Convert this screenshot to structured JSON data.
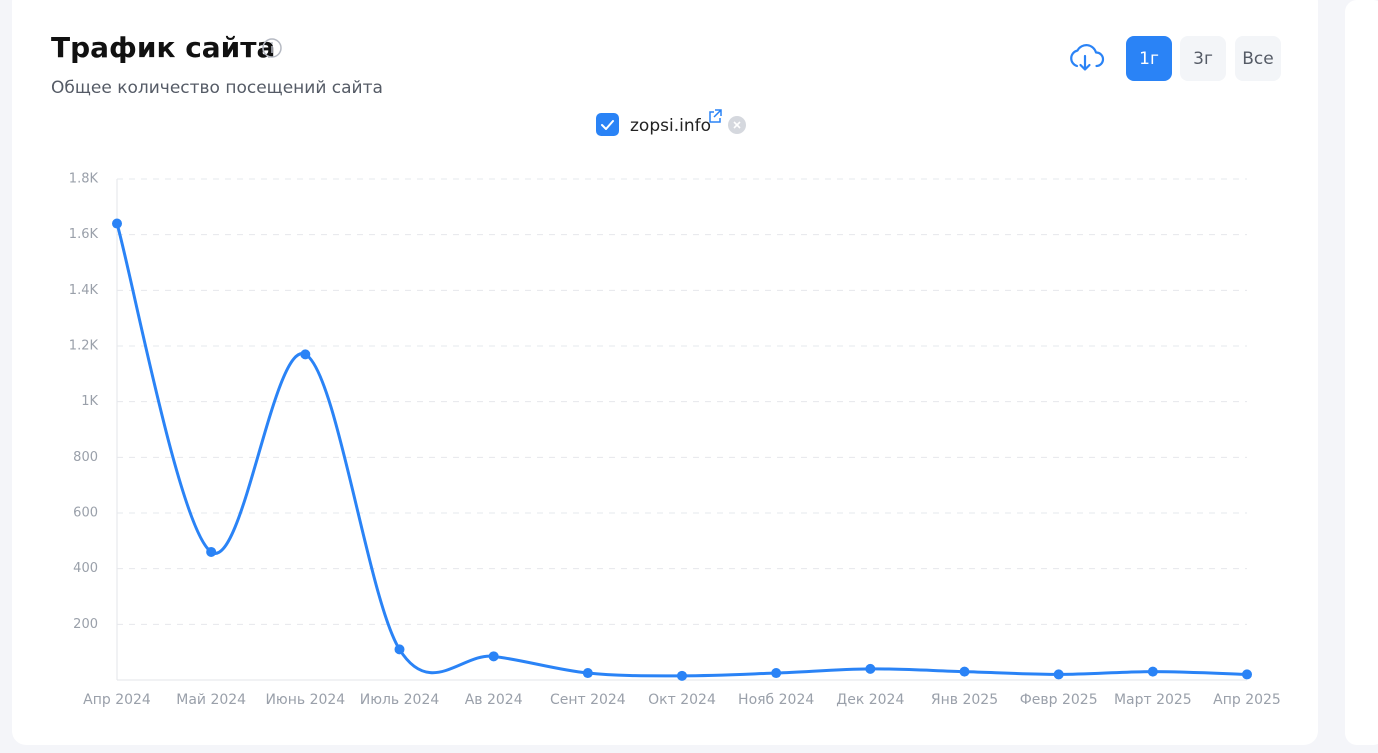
{
  "header": {
    "title": "Трафик сайта",
    "subtitle": "Общее количество посещений сайта"
  },
  "controls": {
    "periods": [
      "1г",
      "3г",
      "Все"
    ]
  },
  "chart_data": {
    "type": "line",
    "categories": [
      "Апр 2024",
      "Май 2024",
      "Июнь 2024",
      "Июль 2024",
      "Ав 2024",
      "Сент 2024",
      "Окт 2024",
      "Нояб 2024",
      "Дек 2024",
      "Янв 2025",
      "Февр 2025",
      "Март 2025",
      "Апр 2025"
    ],
    "series": [
      {
        "name": "zopsi.info",
        "color": "#2a83f6",
        "values": [
          1640,
          460,
          1170,
          110,
          85,
          25,
          15,
          25,
          40,
          30,
          20,
          30,
          20
        ]
      }
    ],
    "ylim": [
      0,
      1800
    ],
    "yticks": [
      200,
      400,
      600,
      800,
      {
        "value": 1000,
        "label": "1K"
      },
      {
        "value": 1200,
        "label": "1.2K"
      },
      {
        "value": 1400,
        "label": "1.4K"
      },
      {
        "value": 1600,
        "label": "1.6K"
      },
      {
        "value": 1800,
        "label": "1.8K"
      }
    ],
    "grid": true
  }
}
